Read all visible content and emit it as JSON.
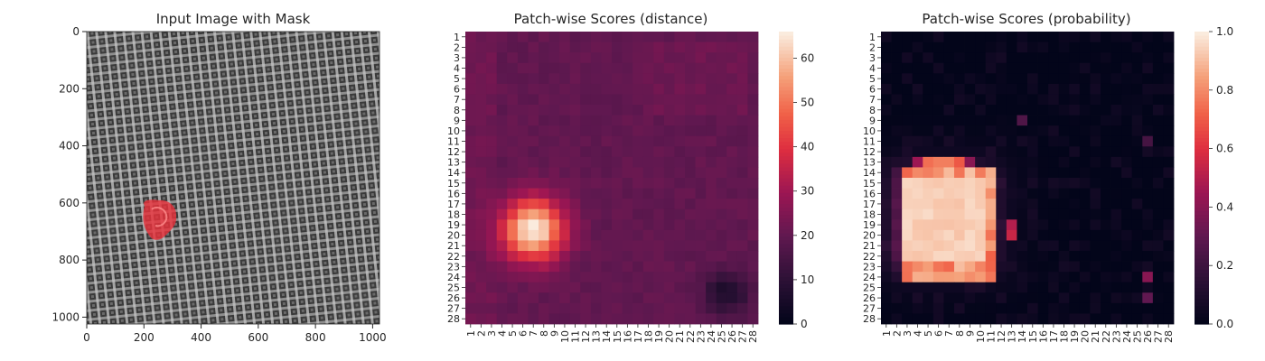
{
  "panels": {
    "image": {
      "title": "Input Image with Mask",
      "xticks": [
        "0",
        "200",
        "400",
        "600",
        "800",
        "1000"
      ],
      "yticks": [
        "0",
        "200",
        "400",
        "600",
        "800",
        "1000"
      ]
    },
    "distance": {
      "title": "Patch-wise Scores (distance)",
      "colorbar_ticks": [
        "0",
        "10",
        "20",
        "30",
        "40",
        "50",
        "60"
      ]
    },
    "probability": {
      "title": "Patch-wise Scores (probability)",
      "colorbar_ticks": [
        "0.0",
        "0.2",
        "0.4",
        "0.6",
        "0.8",
        "1.0"
      ]
    }
  },
  "colors": {
    "text": "#262626",
    "fabric_dark": "#3a3a3a",
    "fabric_light": "#9a9a9a",
    "mask": "#e8323c"
  },
  "chart_data": [
    {
      "type": "image",
      "title": "Input Image with Mask",
      "xlim": [
        0,
        1024
      ],
      "ylim": [
        1024,
        0
      ],
      "xticks": [
        0,
        200,
        400,
        600,
        800,
        1000
      ],
      "yticks": [
        0,
        200,
        400,
        600,
        800,
        1000
      ],
      "mask_region": {
        "center_x": 245,
        "center_y": 660,
        "approx_radius": 60
      }
    },
    {
      "type": "heatmap",
      "title": "Patch-wise Scores (distance)",
      "rows": [
        "1",
        "2",
        "3",
        "4",
        "5",
        "6",
        "7",
        "8",
        "9",
        "10",
        "11",
        "12",
        "13",
        "14",
        "15",
        "16",
        "17",
        "18",
        "19",
        "20",
        "21",
        "22",
        "23",
        "24",
        "25",
        "26",
        "27",
        "28"
      ],
      "cols": [
        "1",
        "2",
        "3",
        "4",
        "5",
        "6",
        "7",
        "8",
        "9",
        "10",
        "11",
        "12",
        "13",
        "14",
        "15",
        "16",
        "17",
        "18",
        "19",
        "20",
        "21",
        "22",
        "23",
        "24",
        "25",
        "26",
        "27",
        "28"
      ],
      "colorbar_range": [
        0,
        66
      ],
      "colorbar_ticks": [
        0,
        10,
        20,
        30,
        40,
        50,
        60
      ],
      "background_value": 20,
      "hotspots": [
        {
          "row": 19.5,
          "col": 7,
          "peak": 66,
          "sigma": 2.1
        },
        {
          "row": 25.5,
          "col": 25.5,
          "peak": 6,
          "sigma": 1.5
        }
      ],
      "grid": false
    },
    {
      "type": "heatmap",
      "title": "Patch-wise Scores (probability)",
      "rows": [
        "1",
        "2",
        "3",
        "4",
        "5",
        "6",
        "7",
        "8",
        "9",
        "10",
        "11",
        "12",
        "13",
        "14",
        "15",
        "16",
        "17",
        "18",
        "19",
        "20",
        "21",
        "22",
        "23",
        "24",
        "25",
        "26",
        "27",
        "28"
      ],
      "cols": [
        "1",
        "2",
        "3",
        "4",
        "5",
        "6",
        "7",
        "8",
        "9",
        "10",
        "11",
        "12",
        "13",
        "14",
        "15",
        "16",
        "17",
        "18",
        "19",
        "20",
        "21",
        "22",
        "23",
        "24",
        "25",
        "26",
        "27",
        "28"
      ],
      "colorbar_range": [
        0.0,
        1.0
      ],
      "colorbar_ticks": [
        0.0,
        0.2,
        0.4,
        0.6,
        0.8,
        1.0
      ],
      "high_region": {
        "row_from": 14,
        "row_to": 24,
        "col_from": 3,
        "col_to": 11,
        "value": 0.97
      },
      "edge_cells": [
        {
          "row": 13,
          "col": 4,
          "value": 0.45
        },
        {
          "row": 13,
          "col": 5,
          "value": 0.75
        },
        {
          "row": 13,
          "col": 6,
          "value": 0.78
        },
        {
          "row": 13,
          "col": 7,
          "value": 0.78
        },
        {
          "row": 13,
          "col": 8,
          "value": 0.7
        },
        {
          "row": 13,
          "col": 9,
          "value": 0.4
        },
        {
          "row": 19,
          "col": 13,
          "value": 0.5
        },
        {
          "row": 20,
          "col": 13,
          "value": 0.55
        },
        {
          "row": 24,
          "col": 26,
          "value": 0.4
        },
        {
          "row": 26,
          "col": 26,
          "value": 0.3
        },
        {
          "row": 9,
          "col": 14,
          "value": 0.25
        },
        {
          "row": 11,
          "col": 26,
          "value": 0.22
        }
      ],
      "grid": false
    }
  ]
}
